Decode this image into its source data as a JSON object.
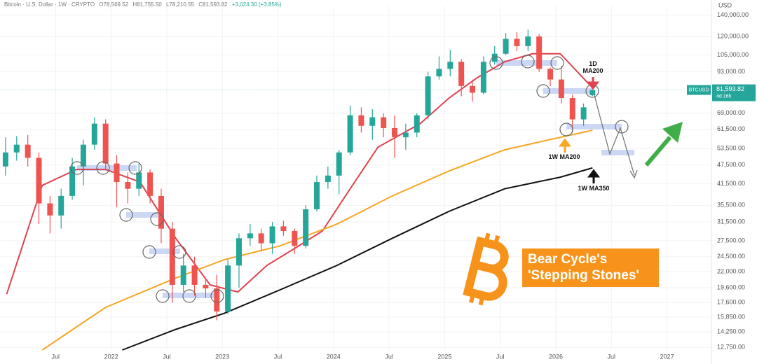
{
  "chart_data": {
    "type": "candlestick",
    "header": {
      "symbol": "Bitcoin · U.S. Dollar · 1W · CRYPTO",
      "ohlc": [
        "O78,569.52",
        "H81,755.50",
        "L78,210.55",
        "C81,593.82"
      ],
      "change": "+3,024.30 (+3.85%)"
    },
    "y_axis_unit": "USD",
    "log_y": true,
    "grid": true,
    "up_color": "#26a69a",
    "down_color": "#ef5350",
    "xlim": [
      2021.0,
      2027.4
    ],
    "xticks": [
      {
        "value": 2021.5,
        "label": "Jul"
      },
      2022,
      {
        "value": 2022.5,
        "label": "Jul"
      },
      2023,
      {
        "value": 2023.5,
        "label": "Jul"
      },
      2024,
      {
        "value": 2024.5,
        "label": "Jul"
      },
      2025,
      {
        "value": 2025.5,
        "label": "Jul"
      },
      2026,
      {
        "value": 2026.5,
        "label": "Jul"
      },
      2027
    ],
    "ylim": [
      12500,
      150000
    ],
    "yticks": [
      {
        "value": 140000,
        "label": "140,000.00"
      },
      {
        "value": 120000,
        "label": "120,000.00"
      },
      {
        "value": 105000,
        "label": "105,000.00"
      },
      {
        "value": 93000,
        "label": "93,000.00"
      },
      {
        "value": 69000,
        "label": "69,000.00"
      },
      {
        "value": 61500,
        "label": "61,500.00"
      },
      {
        "value": 53500,
        "label": "53,500.00"
      },
      {
        "value": 47500,
        "label": "47,500.00"
      },
      {
        "value": 41500,
        "label": "41,500.00"
      },
      {
        "value": 35500,
        "label": "35,500.00"
      },
      {
        "value": 31500,
        "label": "31,500.00"
      },
      {
        "value": 27500,
        "label": "27,500.00"
      },
      {
        "value": 24500,
        "label": "24,500.00"
      },
      {
        "value": 22000,
        "label": "22,000.00"
      },
      {
        "value": 19600,
        "label": "19,600.00"
      },
      {
        "value": 17600,
        "label": "17,600.00"
      },
      {
        "value": 15850,
        "label": "15,850.00"
      },
      {
        "value": 14250,
        "label": "14,250.00"
      },
      {
        "value": 12750,
        "label": "12,750.00"
      }
    ],
    "candles": {
      "x": [
        2021.05,
        2021.15,
        2021.25,
        2021.35,
        2021.45,
        2021.55,
        2021.65,
        2021.75,
        2021.85,
        2021.95,
        2022.05,
        2022.15,
        2022.25,
        2022.35,
        2022.45,
        2022.55,
        2022.65,
        2022.75,
        2022.85,
        2022.95,
        2023.05,
        2023.15,
        2023.25,
        2023.35,
        2023.45,
        2023.55,
        2023.65,
        2023.75,
        2023.85,
        2023.95,
        2024.05,
        2024.15,
        2024.25,
        2024.35,
        2024.45,
        2024.55,
        2024.65,
        2024.75,
        2024.85,
        2024.95,
        2025.05,
        2025.15,
        2025.25,
        2025.35,
        2025.45,
        2025.55,
        2025.65,
        2025.75,
        2025.85,
        2025.95,
        2026.05,
        2026.15,
        2026.25,
        2026.33
      ],
      "open": [
        47000,
        52000,
        55000,
        50000,
        36000,
        33000,
        38000,
        47000,
        55000,
        64000,
        48000,
        42000,
        40000,
        45000,
        38000,
        30000,
        20000,
        23000,
        20000,
        19500,
        16500,
        23000,
        28000,
        29000,
        27000,
        30500,
        29500,
        26500,
        34500,
        42000,
        44000,
        52000,
        68000,
        63000,
        67000,
        62000,
        58000,
        60000,
        68000,
        90000,
        95000,
        100000,
        84000,
        80000,
        100000,
        106000,
        118000,
        112000,
        120000,
        95000,
        88000,
        77000,
        66000,
        78569.52
      ],
      "high": [
        58000,
        58500,
        59000,
        52000,
        38000,
        40000,
        50000,
        57000,
        67000,
        66000,
        51000,
        45000,
        48000,
        46000,
        40000,
        31500,
        25000,
        24500,
        21000,
        21500,
        24000,
        29000,
        31000,
        30000,
        31500,
        31800,
        30000,
        35500,
        44000,
        47000,
        53000,
        73000,
        72000,
        71000,
        69000,
        68000,
        64000,
        69000,
        93000,
        104000,
        109000,
        102000,
        88000,
        104000,
        112000,
        123000,
        124000,
        126000,
        122000,
        96000,
        97000,
        79000,
        74000,
        81755.5
      ],
      "low": [
        44000,
        49000,
        47000,
        31000,
        29000,
        30000,
        37000,
        41000,
        53000,
        46000,
        35000,
        36000,
        38000,
        36000,
        27000,
        17600,
        19000,
        18500,
        18200,
        15500,
        16200,
        19600,
        26500,
        25500,
        25000,
        28500,
        25000,
        26000,
        34000,
        40000,
        38500,
        51000,
        60000,
        57000,
        58000,
        50000,
        53000,
        58000,
        66000,
        88000,
        90000,
        78000,
        75000,
        79000,
        98000,
        105000,
        108000,
        108000,
        93000,
        84000,
        74000,
        60000,
        63000,
        78210.55
      ],
      "close": [
        52000,
        55000,
        50000,
        36000,
        33000,
        38000,
        47000,
        55000,
        64000,
        48000,
        42000,
        40000,
        45000,
        38000,
        30000,
        20000,
        23000,
        20000,
        19500,
        16500,
        23000,
        28000,
        29000,
        27000,
        30500,
        29500,
        26500,
        34500,
        42000,
        44000,
        52000,
        68000,
        63000,
        67000,
        62000,
        58000,
        60000,
        68000,
        90000,
        95000,
        100000,
        84000,
        80000,
        100000,
        106000,
        118000,
        112000,
        120000,
        95000,
        88000,
        77000,
        66000,
        72000,
        81593.82
      ]
    },
    "last_price": {
      "symbol": "BTCUSD",
      "label": "81,593.82",
      "countdown": "4d 16h"
    },
    "lines": [
      {
        "name": "1D MA200",
        "color": "#e0424f",
        "x": [
          2021.06,
          2021.38,
          2021.69,
          2021.95,
          2022.26,
          2022.58,
          2022.89,
          2023.14,
          2023.4,
          2023.65,
          2023.9,
          2024.15,
          2024.4,
          2024.78,
          2025.04,
          2025.29,
          2025.54,
          2025.79,
          2026.04,
          2026.3
        ],
        "values": [
          18700,
          41000,
          46000,
          46000,
          42000,
          28000,
          20000,
          19000,
          23000,
          26000,
          29500,
          40000,
          54000,
          64000,
          77000,
          89000,
          100000,
          106000,
          106000,
          85000
        ]
      },
      {
        "name": "1W MA200",
        "color": "#f5a623",
        "x": [
          2021.38,
          2021.95,
          2022.58,
          2023.02,
          2023.52,
          2024.03,
          2024.53,
          2025.04,
          2025.54,
          2026.04,
          2026.33
        ],
        "values": [
          12500,
          17000,
          21000,
          24000,
          26500,
          31000,
          38000,
          45500,
          53000,
          58000,
          61000
        ]
      },
      {
        "name": "1W MA350",
        "color": "#111111",
        "x": [
          2022.1,
          2022.58,
          2023.02,
          2023.52,
          2024.03,
          2024.53,
          2025.04,
          2025.54,
          2026.04,
          2026.33
        ],
        "values": [
          12500,
          14500,
          16300,
          19300,
          23000,
          28000,
          34000,
          40000,
          43500,
          46500
        ]
      }
    ],
    "annotation": [
      "Bear Cycle's",
      "'Stepping Stones'"
    ]
  }
}
